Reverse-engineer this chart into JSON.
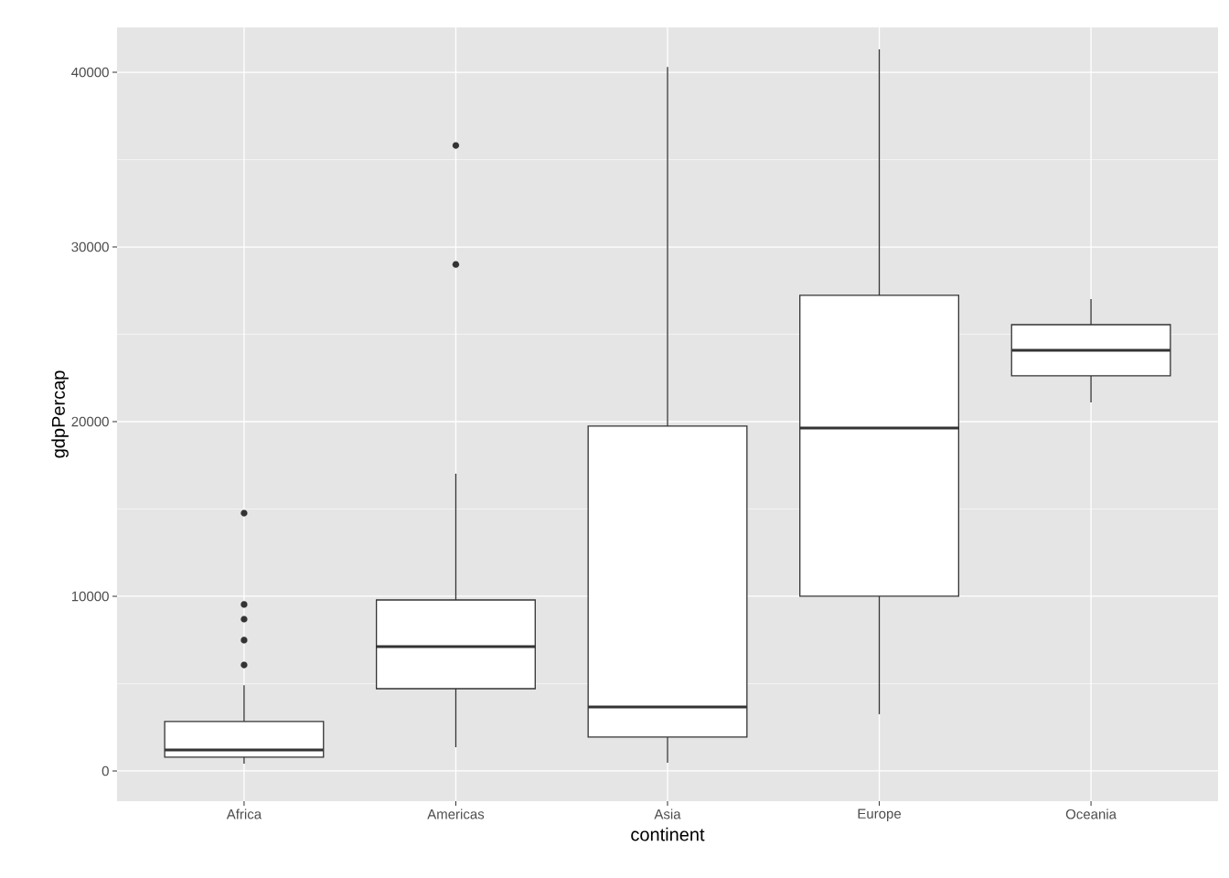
{
  "chart_data": {
    "type": "box",
    "xlabel": "continent",
    "ylabel": "gdpPercap",
    "categories": [
      "Africa",
      "Americas",
      "Asia",
      "Europe",
      "Oceania"
    ],
    "color": "#333333",
    "boxes": [
      {
        "low": 420,
        "q1": 790,
        "median": 1200,
        "q3": 2830,
        "high": 4900,
        "outliers": [
          14760,
          9530,
          8690,
          7490,
          6070
        ]
      },
      {
        "low": 1360,
        "q1": 4710,
        "median": 7120,
        "q3": 9790,
        "high": 17020,
        "outliers": [
          35810,
          29000
        ]
      },
      {
        "low": 470,
        "q1": 1940,
        "median": 3660,
        "q3": 19740,
        "high": 40310
      },
      {
        "low": 3250,
        "q1": 10000,
        "median": 19630,
        "q3": 27230,
        "high": 41310
      },
      {
        "low": 21100,
        "q1": 22620,
        "median": 24080,
        "q3": 25550,
        "high": 27020
      }
    ],
    "ylim": [
      -1730,
      42570
    ],
    "yticks": [
      0,
      10000,
      20000,
      30000,
      40000
    ],
    "grid": true
  }
}
